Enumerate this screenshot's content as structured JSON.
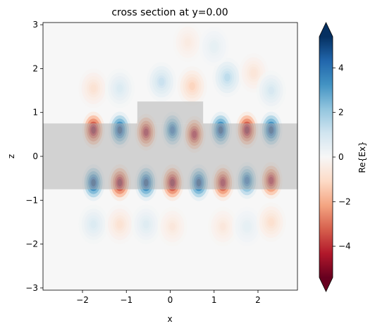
{
  "chart_data": {
    "type": "heatmap",
    "title": "cross section at y=0.00",
    "xlabel": "x",
    "ylabel": "z",
    "xlim": [
      -2.9,
      2.9
    ],
    "ylim": [
      -3.05,
      3.05
    ],
    "x_ticks": [
      -2,
      -1,
      0,
      1,
      2
    ],
    "x_tick_labels": [
      "−2",
      "−1",
      "0",
      "1",
      "2"
    ],
    "y_ticks": [
      -3,
      -2,
      -1,
      0,
      1,
      2,
      3
    ],
    "y_tick_labels": [
      "−3",
      "−2",
      "−1",
      "0",
      "1",
      "2",
      "3"
    ],
    "colorbar": {
      "label": "Re{Ex}",
      "colormap": "RdBu",
      "vmin": -5.4,
      "vmax": 5.4,
      "extend": "both",
      "ticks": [
        -4,
        -2,
        0,
        2,
        4
      ],
      "tick_labels": [
        "−4",
        "−2",
        "0",
        "2",
        "4"
      ],
      "low_color": "#67001f",
      "mid_color": "#f7f7f7",
      "high_color": "#053061"
    },
    "structures": [
      {
        "name": "waveguide",
        "x": [
          -2.9,
          2.9
        ],
        "z": [
          -0.75,
          0.75
        ]
      },
      {
        "name": "grating-block",
        "x": [
          -0.75,
          0.75
        ],
        "z": [
          0.75,
          1.25
        ]
      }
    ],
    "structure_color": "#b4b4b4",
    "field_lobes": [
      {
        "x": -1.75,
        "z": 0.6,
        "value": -5.0
      },
      {
        "x": -1.15,
        "z": 0.6,
        "value": 5.0
      },
      {
        "x": -0.55,
        "z": 0.55,
        "value": -4.6
      },
      {
        "x": 0.05,
        "z": 0.6,
        "value": 4.3
      },
      {
        "x": 0.55,
        "z": 0.5,
        "value": -4.5
      },
      {
        "x": 1.15,
        "z": 0.6,
        "value": 5.0
      },
      {
        "x": 1.75,
        "z": 0.6,
        "value": -5.0
      },
      {
        "x": 2.3,
        "z": 0.6,
        "value": 5.0
      },
      {
        "x": -1.75,
        "z": -0.6,
        "value": 5.0
      },
      {
        "x": -1.15,
        "z": -0.6,
        "value": -5.0
      },
      {
        "x": -0.55,
        "z": -0.6,
        "value": 5.0
      },
      {
        "x": 0.05,
        "z": -0.6,
        "value": -5.0
      },
      {
        "x": 0.65,
        "z": -0.6,
        "value": 5.0
      },
      {
        "x": 1.2,
        "z": -0.6,
        "value": -4.6
      },
      {
        "x": 1.75,
        "z": -0.55,
        "value": 4.3
      },
      {
        "x": 2.3,
        "z": -0.55,
        "value": -4.5
      },
      {
        "x": -1.75,
        "z": 1.55,
        "value": -0.8
      },
      {
        "x": -1.15,
        "z": 1.55,
        "value": 0.8
      },
      {
        "x": -0.2,
        "z": 1.7,
        "value": 1.2
      },
      {
        "x": 0.5,
        "z": 1.6,
        "value": -1.2
      },
      {
        "x": 1.3,
        "z": 1.8,
        "value": 1.4
      },
      {
        "x": 1.9,
        "z": 1.9,
        "value": -0.7
      },
      {
        "x": -1.75,
        "z": -1.55,
        "value": 0.8
      },
      {
        "x": -1.15,
        "z": -1.55,
        "value": -0.8
      },
      {
        "x": -0.55,
        "z": -1.55,
        "value": 0.7
      },
      {
        "x": 0.05,
        "z": -1.6,
        "value": -0.6
      },
      {
        "x": 1.2,
        "z": -1.6,
        "value": -0.6
      },
      {
        "x": 1.75,
        "z": -1.6,
        "value": 0.5
      },
      {
        "x": 0.4,
        "z": 2.6,
        "value": -0.5
      },
      {
        "x": 1.0,
        "z": 2.5,
        "value": 0.5
      },
      {
        "x": 2.3,
        "z": 1.5,
        "value": 0.9
      },
      {
        "x": 2.3,
        "z": -1.5,
        "value": -0.9
      }
    ]
  }
}
